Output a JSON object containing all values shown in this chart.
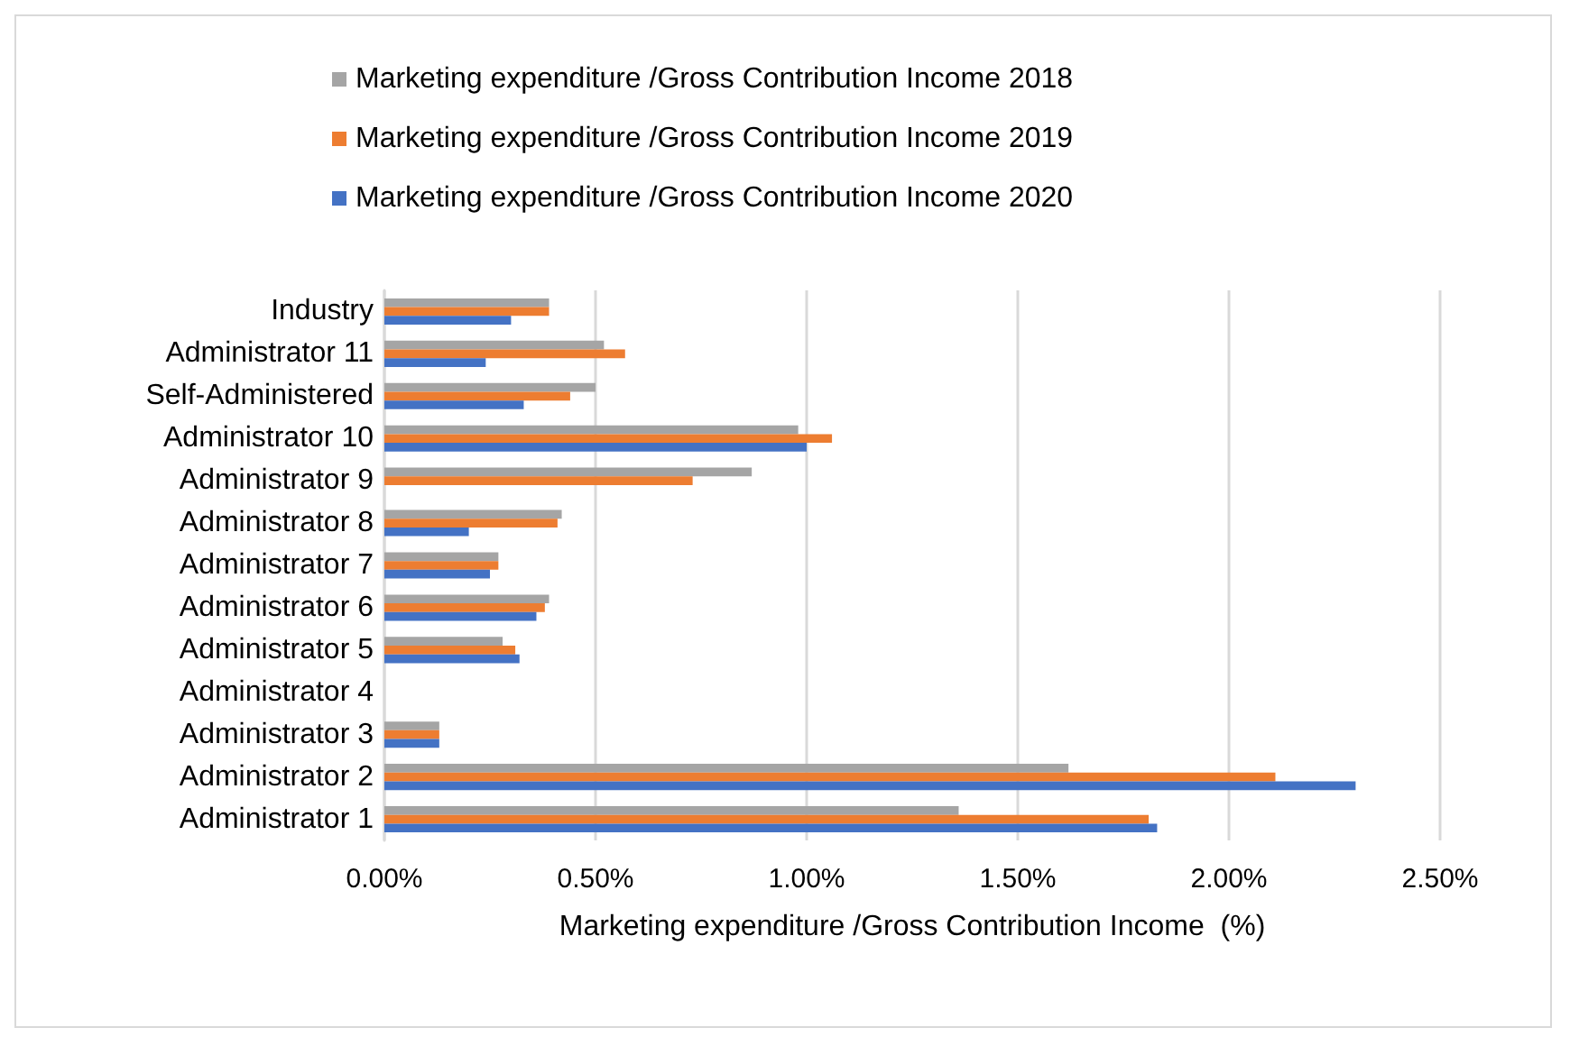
{
  "chart_data": {
    "type": "bar",
    "orientation": "horizontal",
    "xlabel": "Marketing expenditure /Gross Contribution Income  (%)",
    "categories": [
      "Industry",
      "Administrator 11",
      "Self-Administered",
      "Administrator 10",
      "Administrator 9",
      "Administrator 8",
      "Administrator 7",
      "Administrator 6",
      "Administrator 5",
      "Administrator 4",
      "Administrator 3",
      "Administrator 2",
      "Administrator 1"
    ],
    "series": [
      {
        "name": "Marketing expenditure /Gross Contribution Income 2018",
        "color": "#a5a5a5",
        "values": [
          0.39,
          0.52,
          0.5,
          0.98,
          0.87,
          0.42,
          0.27,
          0.39,
          0.28,
          null,
          0.13,
          1.62,
          1.36
        ]
      },
      {
        "name": "Marketing expenditure /Gross Contribution Income 2019",
        "color": "#ed7d31",
        "values": [
          0.39,
          0.57,
          0.44,
          1.06,
          0.73,
          0.41,
          0.27,
          0.38,
          0.31,
          null,
          0.13,
          2.11,
          1.81
        ]
      },
      {
        "name": "Marketing expenditure /Gross Contribution Income 2020",
        "color": "#4472c4",
        "values": [
          0.3,
          0.24,
          0.33,
          1.0,
          null,
          0.2,
          0.25,
          0.36,
          0.32,
          null,
          0.13,
          2.3,
          1.83
        ]
      }
    ],
    "xlim": [
      0,
      2.5
    ],
    "xticks": [
      {
        "value": 0,
        "label": "0.00%"
      },
      {
        "value": 0.5,
        "label": "0.50%"
      },
      {
        "value": 1,
        "label": "1.00%"
      },
      {
        "value": 1.5,
        "label": "1.50%"
      },
      {
        "value": 2,
        "label": "2.00%"
      },
      {
        "value": 2.5,
        "label": "2.50%"
      }
    ],
    "grid": "x",
    "legend": "top"
  }
}
